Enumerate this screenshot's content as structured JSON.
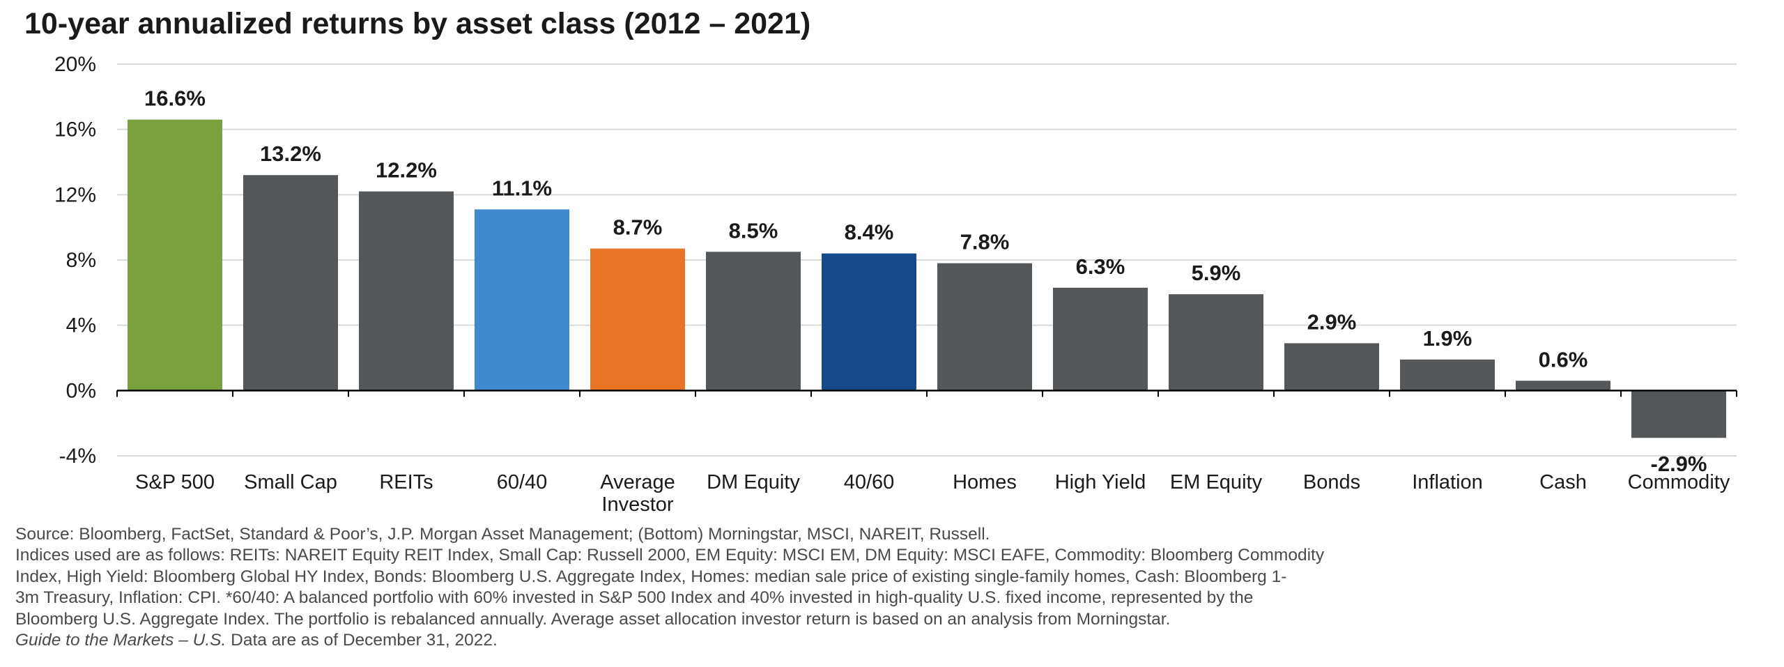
{
  "chart_data": {
    "type": "bar",
    "title": "10-year annualized returns by asset class (2012 – 2021)",
    "categories": [
      "S&P 500",
      "Small Cap",
      "REITs",
      "60/40",
      "Average Investor",
      "DM Equity",
      "40/60",
      "Homes",
      "High Yield",
      "EM Equity",
      "Bonds",
      "Inflation",
      "Cash",
      "Commodity"
    ],
    "category_lines": [
      [
        "S&P 500"
      ],
      [
        "Small Cap"
      ],
      [
        "REITs"
      ],
      [
        "60/40"
      ],
      [
        "Average",
        "Investor"
      ],
      [
        "DM Equity"
      ],
      [
        "40/60"
      ],
      [
        "Homes"
      ],
      [
        "High Yield"
      ],
      [
        "EM Equity"
      ],
      [
        "Bonds"
      ],
      [
        "Inflation"
      ],
      [
        "Cash"
      ],
      [
        "Commodity"
      ]
    ],
    "values": [
      16.6,
      13.2,
      12.2,
      11.1,
      8.7,
      8.5,
      8.4,
      7.8,
      6.3,
      5.9,
      2.9,
      1.9,
      0.6,
      -2.9
    ],
    "value_labels": [
      "16.6%",
      "13.2%",
      "12.2%",
      "11.1%",
      "8.7%",
      "8.5%",
      "8.4%",
      "7.8%",
      "6.3%",
      "5.9%",
      "2.9%",
      "1.9%",
      "0.6%",
      "-2.9%"
    ],
    "bar_colors": [
      "#7ba13f",
      "#53575a",
      "#53575a",
      "#4189cf",
      "#e87425",
      "#53575a",
      "#174a8b",
      "#53575a",
      "#53575a",
      "#53575a",
      "#53575a",
      "#53575a",
      "#53575a",
      "#53575a"
    ],
    "ylim": [
      -4,
      20
    ],
    "yticks": [
      -4,
      0,
      4,
      8,
      12,
      16,
      20
    ],
    "ytick_labels": [
      "-4%",
      "0%",
      "4%",
      "8%",
      "12%",
      "16%",
      "20%"
    ],
    "xlabel": "",
    "ylabel": "",
    "grid": true,
    "legend": "none"
  },
  "footnotes": {
    "line1": "Source: Bloomberg, FactSet, Standard & Poor’s, J.P. Morgan Asset Management; (Bottom) Morningstar, MSCI, NAREIT, Russell.",
    "line2": "Indices used are as follows: REITs: NAREIT Equity REIT Index, Small Cap: Russell 2000, EM Equity: MSCI EM, DM Equity: MSCI EAFE, Commodity: Bloomberg Commodity",
    "line3": "Index, High Yield: Bloomberg Global HY Index, Bonds: Bloomberg U.S. Aggregate Index, Homes: median sale price of existing single-family homes, Cash: Bloomberg 1-",
    "line4": "3m Treasury, Inflation: CPI. *60/40: A balanced portfolio with 60% invested in S&P 500 Index and 40% invested in high-quality U.S. fixed income, represented by the",
    "line5": "Bloomberg U.S. Aggregate Index. The portfolio is rebalanced annually. Average asset allocation investor return is based on an analysis from Morningstar.",
    "line6_italic": "Guide to the Markets – U.S.",
    "line6_rest": " Data are as of December 31, 2022."
  }
}
